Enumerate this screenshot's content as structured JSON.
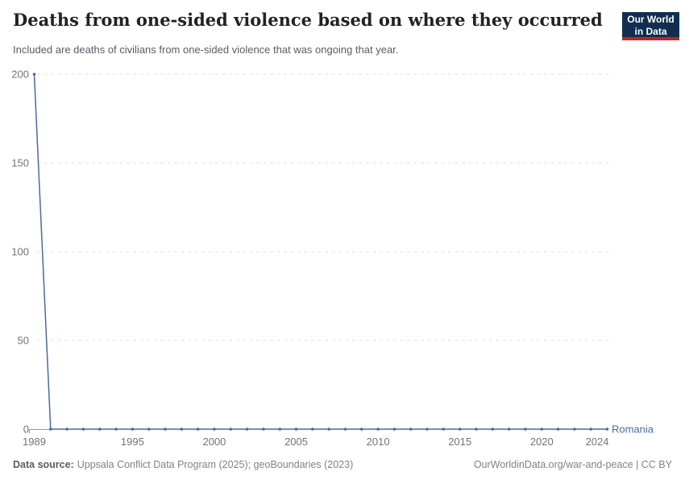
{
  "header": {
    "logo": {
      "line1": "Our World",
      "line2": "in Data"
    }
  },
  "chart_data": {
    "type": "line",
    "title": "Deaths from one-sided violence based on where they occurred",
    "subtitle": "Included are deaths of civilians from one-sided violence that was ongoing that year.",
    "x": [
      1989,
      1990,
      1991,
      1992,
      1993,
      1994,
      1995,
      1996,
      1997,
      1998,
      1999,
      2000,
      2001,
      2002,
      2003,
      2004,
      2005,
      2006,
      2007,
      2008,
      2009,
      2010,
      2011,
      2012,
      2013,
      2014,
      2015,
      2016,
      2017,
      2018,
      2019,
      2020,
      2021,
      2022,
      2023,
      2024
    ],
    "series": [
      {
        "name": "Romania",
        "color": "#4C6A9C",
        "values": [
          200,
          0,
          0,
          0,
          0,
          0,
          0,
          0,
          0,
          0,
          0,
          0,
          0,
          0,
          0,
          0,
          0,
          0,
          0,
          0,
          0,
          0,
          0,
          0,
          0,
          0,
          0,
          0,
          0,
          0,
          0,
          0,
          0,
          0,
          0,
          0
        ]
      }
    ],
    "x_ticks": [
      1989,
      1995,
      2000,
      2005,
      2010,
      2015,
      2020,
      2024
    ],
    "y_ticks": [
      0,
      50,
      100,
      150,
      200
    ],
    "xlim": [
      1989,
      2024
    ],
    "ylim": [
      0,
      200
    ],
    "grid": "horizontal-dashed",
    "legend": "series-end-label"
  },
  "footer": {
    "source_label": "Data source:",
    "source_text": "Uppsala Conflict Data Program (2025); geoBoundaries (2023)",
    "right_text": "OurWorldinData.org/war-and-peace | CC BY"
  },
  "colors": {
    "title": "#222222",
    "subtitle": "#565d63",
    "gridline": "#e0e0e0",
    "tick_label": "#737373",
    "axis": "#9a9a9a",
    "footer": "#828282",
    "footer_bold": "#5c5c5c",
    "logo_bg": "#112e51",
    "logo_red": "#c0271e"
  }
}
